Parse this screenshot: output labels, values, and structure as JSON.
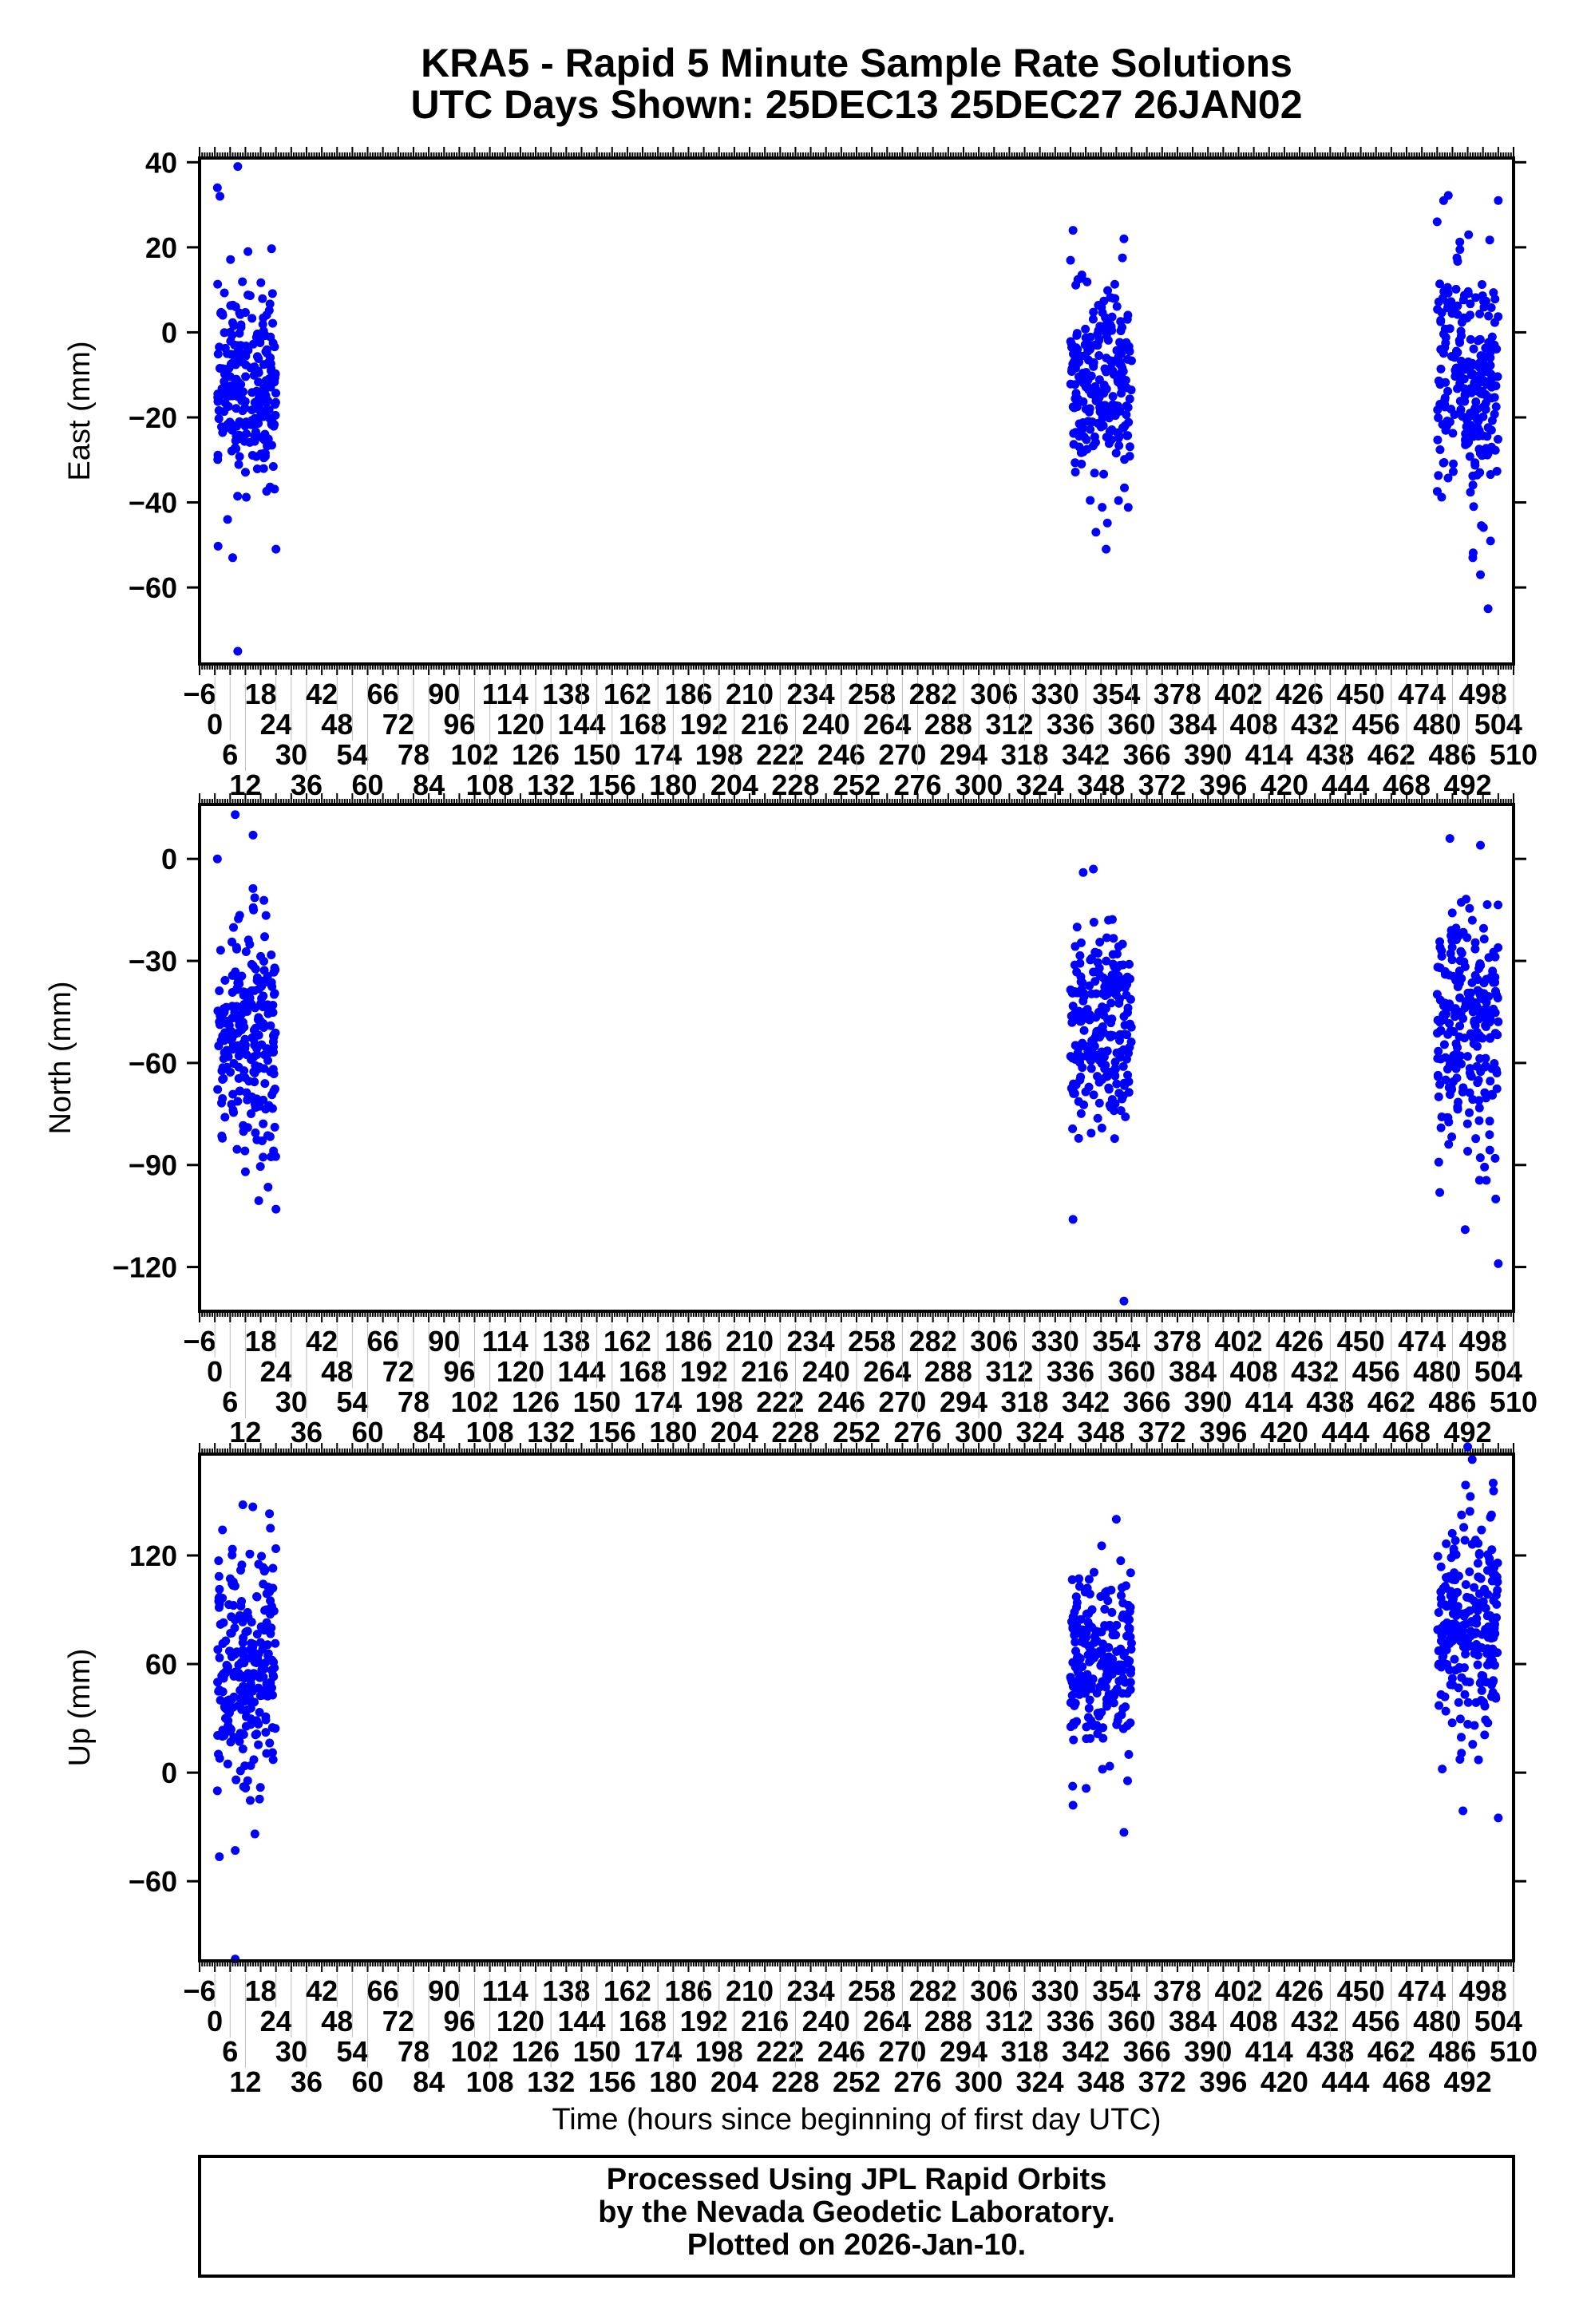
{
  "chart_data": {
    "type": "scatter",
    "title": "KRA5 - Rapid 5 Minute Sample Rate Solutions",
    "subtitle": "UTC Days Shown:  25DEC13 25DEC27 26JAN02",
    "xlabel": "Time (hours since beginning of first day UTC)",
    "xlim": [
      -6,
      510
    ],
    "x_tick_step": 6,
    "point_color": "#0000ff",
    "panels": [
      {
        "ylabel": "East (mm)",
        "ylim": [
          -78,
          41
        ],
        "yticks": [
          40,
          20,
          0,
          -20,
          -40,
          -60
        ],
        "clusters": [
          {
            "hours": [
              1,
              24
            ],
            "mean": -12,
            "sd": 11,
            "n": 240
          },
          {
            "hours": [
              336,
              360
            ],
            "mean": -13,
            "sd": 11,
            "n": 240
          },
          {
            "hours": [
              480,
              504
            ],
            "mean": -12,
            "sd": 14,
            "n": 240
          }
        ],
        "outliers": [
          [
            1,
            34
          ],
          [
            2,
            32
          ],
          [
            9,
            39
          ],
          [
            7,
            -53
          ],
          [
            9,
            -75
          ],
          [
            13,
            19
          ],
          [
            24,
            -51
          ],
          [
            5,
            -44
          ],
          [
            337,
            24
          ],
          [
            350,
            -51
          ],
          [
            357,
            22
          ],
          [
            346,
            -47
          ],
          [
            480,
            26
          ],
          [
            500,
            -65
          ],
          [
            504,
            31
          ],
          [
            497,
            -57
          ],
          [
            494,
            -53
          ]
        ]
      },
      {
        "ylabel": "North (mm)",
        "ylim": [
          -133,
          16
        ],
        "yticks": [
          0,
          -30,
          -60,
          -90,
          -120
        ],
        "clusters": [
          {
            "hours": [
              1,
              24
            ],
            "mean": -52,
            "sd": 17,
            "n": 240
          },
          {
            "hours": [
              336,
              360
            ],
            "mean": -52,
            "sd": 15,
            "n": 240
          },
          {
            "hours": [
              480,
              504
            ],
            "mean": -50,
            "sd": 17,
            "n": 240
          }
        ],
        "outliers": [
          [
            8,
            13
          ],
          [
            15,
            7
          ],
          [
            24,
            -103
          ],
          [
            1,
            0
          ],
          [
            12,
            -92
          ],
          [
            337,
            -106
          ],
          [
            357,
            -130
          ],
          [
            345,
            -3
          ],
          [
            341,
            -4
          ],
          [
            485,
            6
          ],
          [
            497,
            4
          ],
          [
            504,
            -119
          ],
          [
            491,
            -109
          ],
          [
            503,
            -100
          ]
        ]
      },
      {
        "ylabel": "Up (mm)",
        "ylim": [
          -104,
          176
        ],
        "yticks": [
          120,
          60,
          0,
          -60
        ],
        "clusters": [
          {
            "hours": [
              1,
              24
            ],
            "mean": 60,
            "sd": 32,
            "n": 240
          },
          {
            "hours": [
              336,
              360
            ],
            "mean": 58,
            "sd": 27,
            "n": 240
          },
          {
            "hours": [
              480,
              504
            ],
            "mean": 75,
            "sd": 32,
            "n": 240
          }
        ],
        "outliers": [
          [
            8,
            -43
          ],
          [
            8,
            -103
          ],
          [
            11,
            148
          ],
          [
            1,
            -10
          ],
          [
            357,
            -33
          ],
          [
            354,
            140
          ],
          [
            337,
            -18
          ],
          [
            492,
            180
          ],
          [
            502,
            160
          ],
          [
            504,
            -25
          ],
          [
            482,
            2
          ]
        ]
      }
    ]
  },
  "footer": {
    "line1": "Processed Using JPL Rapid Orbits",
    "line2": "by the Nevada Geodetic Laboratory.",
    "line3": "Plotted on 2026-Jan-10."
  }
}
